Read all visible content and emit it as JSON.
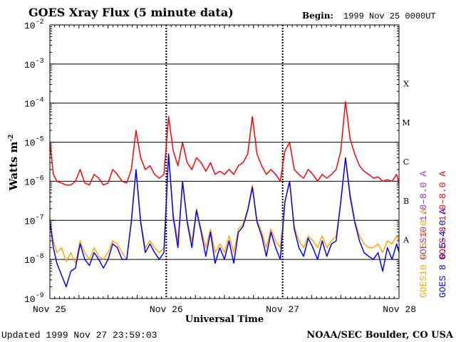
{
  "chart_data": {
    "type": "line",
    "title": "GOES Xray Flux (5 minute data)",
    "begin_label": "Begin:",
    "begin_value": "1999 Nov 25 0000UT",
    "xlabel": "Universal Time",
    "ylabel": "Watts m",
    "ylabel_exponent": "-2",
    "y_scale": "log",
    "ylim_exponents": [
      -9,
      -2
    ],
    "y_ticks": [
      {
        "base": "10",
        "exp": "-2"
      },
      {
        "base": "10",
        "exp": "-3"
      },
      {
        "base": "10",
        "exp": "-4"
      },
      {
        "base": "10",
        "exp": "-5"
      },
      {
        "base": "10",
        "exp": "-6"
      },
      {
        "base": "10",
        "exp": "-7"
      },
      {
        "base": "10",
        "exp": "-8"
      },
      {
        "base": "10",
        "exp": "-9"
      }
    ],
    "x_range_days": [
      0,
      3
    ],
    "x_ticks": [
      {
        "day": 0,
        "label": "Nov 25"
      },
      {
        "day": 1,
        "label": "Nov 26"
      },
      {
        "day": 2,
        "label": "Nov 27"
      },
      {
        "day": 3,
        "label": "Nov 28"
      }
    ],
    "flare_classes": [
      {
        "label": "X",
        "exp": -4
      },
      {
        "label": "M",
        "exp": -5
      },
      {
        "label": "C",
        "exp": -6
      },
      {
        "label": "B",
        "exp": -7
      },
      {
        "label": "A",
        "exp": -8
      }
    ],
    "legend": [
      {
        "label": "GOES10 1.0–8.0 A",
        "color": "#9933cc"
      },
      {
        "label": "GOES 8 1.0–8.0 A",
        "color": "#ff0000"
      },
      {
        "label": "GOES10 0.5–4.0 A",
        "color": "#ffa500"
      },
      {
        "label": "GOES 8 0.5–4.0 A",
        "color": "#0000ff"
      }
    ],
    "series": [
      {
        "name": "GOES10 0.5-4.0 A",
        "color": "#ffa500",
        "x": [
          0.0,
          0.03,
          0.06,
          0.1,
          0.14,
          0.18,
          0.22,
          0.26,
          0.3,
          0.34,
          0.38,
          0.42,
          0.46,
          0.5,
          0.54,
          0.58,
          0.62,
          0.66,
          0.7,
          0.74,
          0.78,
          0.82,
          0.86,
          0.9,
          0.94,
          0.98,
          1.02,
          1.06,
          1.1,
          1.14,
          1.18,
          1.22,
          1.26,
          1.3,
          1.34,
          1.38,
          1.42,
          1.46,
          1.5,
          1.54,
          1.58,
          1.62,
          1.66,
          1.7,
          1.74,
          1.78,
          1.82,
          1.86,
          1.9,
          1.94,
          1.98,
          2.02,
          2.06,
          2.1,
          2.14,
          2.18,
          2.22,
          2.26,
          2.3,
          2.34,
          2.38,
          2.42,
          2.46,
          2.5,
          2.54,
          2.58,
          2.62,
          2.66,
          2.7,
          2.74,
          2.78,
          2.82,
          2.86,
          2.9,
          2.94,
          2.98,
          3.0
        ],
        "y": [
          1e-07,
          3e-08,
          1.5e-08,
          2e-08,
          9e-09,
          1.5e-08,
          8e-09,
          3e-08,
          1.5e-08,
          1e-08,
          2e-08,
          1.2e-08,
          1e-08,
          1.5e-08,
          3e-08,
          2.5e-08,
          1.5e-08,
          1e-08,
          1e-07,
          2e-06,
          1e-07,
          2e-08,
          3e-08,
          2e-08,
          1.5e-08,
          2e-08,
          5e-06,
          1.5e-07,
          3e-08,
          1e-06,
          1e-07,
          3e-08,
          2e-07,
          6e-08,
          2e-08,
          6e-08,
          1.5e-08,
          2.5e-08,
          1.5e-08,
          4e-08,
          1.5e-08,
          6e-08,
          8e-08,
          2e-07,
          8e-07,
          1e-07,
          5e-08,
          2e-08,
          6e-08,
          3e-08,
          2e-08,
          3e-07,
          1e-06,
          7e-08,
          3e-08,
          2e-08,
          4e-08,
          3e-08,
          2e-08,
          4e-08,
          2e-08,
          3e-08,
          4e-08,
          3e-07,
          4e-06,
          5e-07,
          1e-07,
          4e-08,
          2.5e-08,
          2e-08,
          2e-08,
          2.5e-08,
          1.5e-08,
          3e-08,
          2.5e-08,
          4e-08,
          3e-08
        ]
      },
      {
        "name": "GOES 8 0.5-4.0 A",
        "color": "#0000ff",
        "x": [
          0.0,
          0.03,
          0.06,
          0.1,
          0.14,
          0.18,
          0.22,
          0.26,
          0.3,
          0.34,
          0.38,
          0.42,
          0.46,
          0.5,
          0.54,
          0.58,
          0.62,
          0.66,
          0.7,
          0.74,
          0.78,
          0.82,
          0.86,
          0.9,
          0.94,
          0.98,
          1.02,
          1.06,
          1.1,
          1.14,
          1.18,
          1.22,
          1.26,
          1.3,
          1.34,
          1.38,
          1.42,
          1.46,
          1.5,
          1.54,
          1.58,
          1.62,
          1.66,
          1.7,
          1.74,
          1.78,
          1.82,
          1.86,
          1.9,
          1.94,
          1.98,
          2.02,
          2.06,
          2.1,
          2.14,
          2.18,
          2.22,
          2.26,
          2.3,
          2.34,
          2.38,
          2.42,
          2.46,
          2.5,
          2.54,
          2.58,
          2.62,
          2.66,
          2.7,
          2.74,
          2.78,
          2.82,
          2.86,
          2.9,
          2.94,
          2.98,
          3.0
        ],
        "y": [
          1e-07,
          2e-08,
          8e-09,
          4e-09,
          2e-09,
          5e-09,
          6e-09,
          2.5e-08,
          1e-08,
          7e-09,
          1.5e-08,
          1e-08,
          6e-09,
          1e-08,
          2.5e-08,
          2e-08,
          1e-08,
          1e-08,
          9e-08,
          2e-06,
          9e-08,
          1.5e-08,
          2.5e-08,
          1.5e-08,
          1e-08,
          1.5e-08,
          5e-06,
          1.2e-07,
          2e-08,
          1e-06,
          9e-08,
          2e-08,
          1.8e-07,
          5e-08,
          1.2e-08,
          5e-08,
          8e-09,
          2e-08,
          1e-08,
          3e-08,
          8e-09,
          5e-08,
          7e-08,
          1.8e-07,
          7e-07,
          9e-08,
          4e-08,
          1.2e-08,
          5e-08,
          2e-08,
          1e-08,
          3e-07,
          1e-06,
          6e-08,
          2e-08,
          1.2e-08,
          3.5e-08,
          2e-08,
          1e-08,
          3e-08,
          1.2e-08,
          2.5e-08,
          3e-08,
          3e-07,
          4e-06,
          4e-07,
          9e-08,
          3e-08,
          1.5e-08,
          1.2e-08,
          1e-08,
          1.5e-08,
          5e-09,
          2e-08,
          1e-08,
          2.5e-08,
          1.5e-08
        ]
      },
      {
        "name": "GOES 8 1.0-8.0 A",
        "color": "#ff0000",
        "x": [
          0.0,
          0.03,
          0.06,
          0.1,
          0.14,
          0.18,
          0.22,
          0.26,
          0.3,
          0.34,
          0.38,
          0.42,
          0.46,
          0.5,
          0.54,
          0.58,
          0.62,
          0.66,
          0.7,
          0.74,
          0.78,
          0.82,
          0.86,
          0.9,
          0.94,
          0.98,
          1.02,
          1.06,
          1.1,
          1.14,
          1.18,
          1.22,
          1.26,
          1.3,
          1.34,
          1.38,
          1.42,
          1.46,
          1.5,
          1.54,
          1.58,
          1.62,
          1.66,
          1.7,
          1.74,
          1.78,
          1.82,
          1.86,
          1.9,
          1.94,
          1.98,
          2.02,
          2.06,
          2.1,
          2.14,
          2.18,
          2.22,
          2.26,
          2.3,
          2.34,
          2.38,
          2.42,
          2.46,
          2.5,
          2.54,
          2.58,
          2.62,
          2.66,
          2.7,
          2.74,
          2.78,
          2.82,
          2.86,
          2.9,
          2.94,
          2.98,
          3.0
        ],
        "y": [
          1e-05,
          1.5e-06,
          1e-06,
          9e-07,
          8e-07,
          8e-07,
          1e-06,
          2e-06,
          9e-07,
          8e-07,
          1.5e-06,
          1.2e-06,
          8e-07,
          9e-07,
          2e-06,
          1.5e-06,
          1e-06,
          9e-07,
          2e-06,
          2e-05,
          4e-06,
          2e-06,
          2.5e-06,
          1.5e-06,
          1.2e-06,
          1.5e-06,
          4.5e-05,
          6e-06,
          2.5e-06,
          1e-05,
          3e-06,
          2e-06,
          4e-06,
          3e-06,
          1.8e-06,
          3e-06,
          1.5e-06,
          1.8e-06,
          1.5e-06,
          2e-06,
          1.5e-06,
          2.5e-06,
          3e-06,
          5e-06,
          4.5e-05,
          5e-06,
          2.5e-06,
          1.5e-06,
          2e-06,
          1.5e-06,
          1e-06,
          6e-06,
          1e-05,
          2e-06,
          1.5e-06,
          1.2e-06,
          2e-06,
          1.5e-06,
          1e-06,
          1.5e-06,
          1.2e-06,
          1.5e-06,
          2e-06,
          6e-06,
          0.00011,
          1.2e-05,
          5e-06,
          2.5e-06,
          1.8e-06,
          1.5e-06,
          1.2e-06,
          1.3e-06,
          1e-06,
          1.1e-06,
          1e-06,
          1.5e-06,
          9e-07
        ]
      }
    ]
  },
  "footer": {
    "updated": "Updated 1999 Nov 27 23:59:03",
    "credit": "NOAA/SEC Boulder, CO USA"
  }
}
